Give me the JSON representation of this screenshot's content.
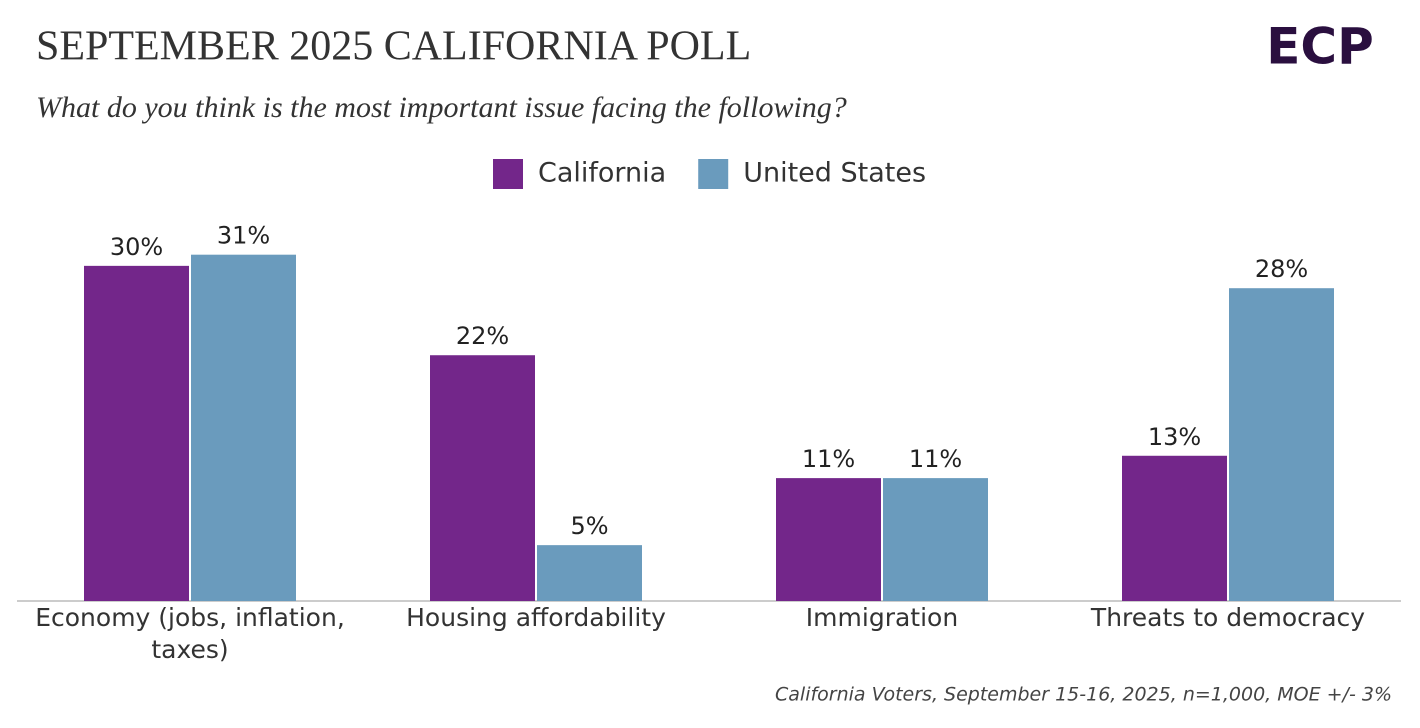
{
  "chart_data": {
    "type": "bar",
    "title": "SEPTEMBER 2025 CALIFORNIA POLL",
    "subtitle": "What do you think is the most important issue facing the following?",
    "logo": "ECP",
    "note": "California Voters, September 15-16, 2025, n=1,000, MOE +/- 3%",
    "categories": [
      "Economy (jobs, inflation, taxes)",
      "Housing affordability",
      "Immigration",
      "Threats to democracy"
    ],
    "series": [
      {
        "name": "California",
        "color": "#73268a",
        "values": [
          30,
          22,
          11,
          13
        ],
        "value_labels": [
          "30%",
          "22%",
          "11%",
          "13%"
        ]
      },
      {
        "name": "United States",
        "color": "#6a9bbd",
        "values": [
          31,
          5,
          11,
          28
        ],
        "value_labels": [
          "31%",
          "5%",
          "11%",
          "28%"
        ]
      }
    ],
    "ylim": [
      0,
      35
    ],
    "legend": "top"
  }
}
